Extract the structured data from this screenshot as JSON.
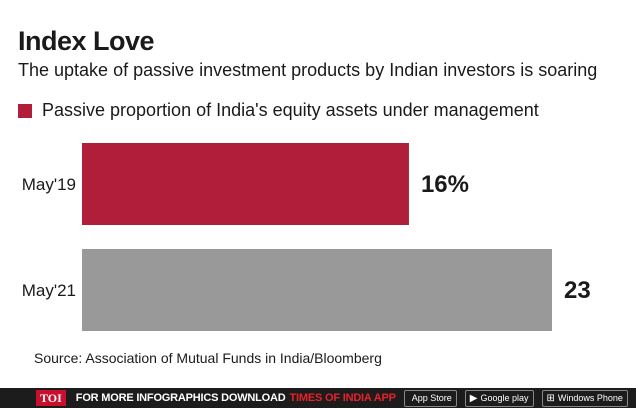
{
  "title": "Index Love",
  "subtitle": "The uptake of passive investment products by Indian investors is soaring",
  "source": "Source: Association of Mutual Funds in India/Bloomberg",
  "colors": {
    "accent": "#b01e3a",
    "gray": "#999999"
  },
  "footer": {
    "logo": "TOI",
    "text": "FOR MORE  INFOGRAPHICS DOWNLOAD",
    "brand": "TIMES OF INDIA APP",
    "badges": [
      {
        "icon": "apple-icon",
        "label": "App Store"
      },
      {
        "icon": "google-play-icon",
        "label": "Google play"
      },
      {
        "icon": "windows-icon",
        "label": "Windows Phone"
      }
    ]
  },
  "chart_data": {
    "type": "bar",
    "orientation": "horizontal",
    "categories": [
      "May'19",
      "May'21"
    ],
    "series": [
      {
        "name": "Passive proportion of India's equity assets under management",
        "values": [
          16,
          23
        ],
        "value_labels": [
          "16%",
          "23"
        ],
        "colors": [
          "#b01e3a",
          "#999999"
        ]
      }
    ],
    "xlim": [
      0,
      23
    ],
    "grid": false,
    "legend": "top-left"
  }
}
